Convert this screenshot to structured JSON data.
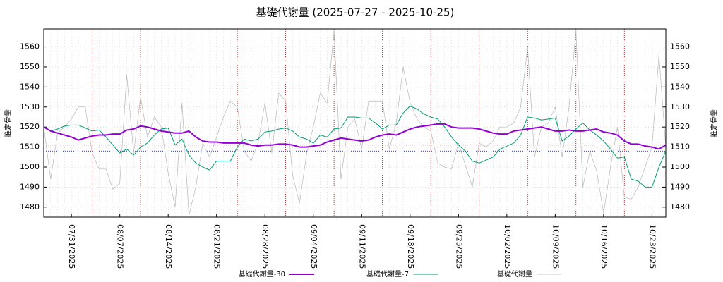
{
  "chart_data": {
    "type": "line",
    "title": "基礎代謝量 (2025-07-27 - 2025-10-25)",
    "ylabel": "推定骨量",
    "y2label": "推定骨量",
    "xlim": [
      "2025-07-27",
      "2025-10-25"
    ],
    "ylim": [
      1475,
      1569
    ],
    "yticks": [
      1480,
      1490,
      1500,
      1510,
      1520,
      1530,
      1540,
      1550,
      1560
    ],
    "xticks": [
      {
        "value": "2025-07-31",
        "label": "07/31/2025"
      },
      {
        "value": "2025-08-07",
        "label": "08/07/2025"
      },
      {
        "value": "2025-08-14",
        "label": "08/14/2025"
      },
      {
        "value": "2025-08-21",
        "label": "08/21/2025"
      },
      {
        "value": "2025-08-28",
        "label": "08/28/2025"
      },
      {
        "value": "2025-09-04",
        "label": "09/04/2025"
      },
      {
        "value": "2025-09-11",
        "label": "09/11/2025"
      },
      {
        "value": "2025-09-18",
        "label": "09/18/2025"
      },
      {
        "value": "2025-09-25",
        "label": "09/25/2025"
      },
      {
        "value": "2025-10-02",
        "label": "10/02/2025"
      },
      {
        "value": "2025-10-09",
        "label": "10/09/2025"
      },
      {
        "value": "2025-10-16",
        "label": "10/16/2025"
      },
      {
        "value": "2025-10-23",
        "label": "10/23/2025"
      }
    ],
    "week_lines": [
      "2025-08-03",
      "2025-08-10",
      "2025-08-17",
      "2025-08-24",
      "2025-08-31",
      "2025-09-07",
      "2025-09-14",
      "2025-09-21",
      "2025-09-28",
      "2025-10-05",
      "2025-10-12",
      "2025-10-19"
    ],
    "week_line_color": "#c00000",
    "reference_lines": [
      {
        "value": 1511,
        "color": "#c00000"
      },
      {
        "value": 1508,
        "color": "#0000a0"
      }
    ],
    "grid": true,
    "legend": "bottom",
    "x": [
      "2025-07-27",
      "2025-07-28",
      "2025-07-29",
      "2025-07-30",
      "2025-07-31",
      "2025-08-01",
      "2025-08-02",
      "2025-08-03",
      "2025-08-04",
      "2025-08-05",
      "2025-08-06",
      "2025-08-07",
      "2025-08-08",
      "2025-08-09",
      "2025-08-10",
      "2025-08-11",
      "2025-08-12",
      "2025-08-13",
      "2025-08-14",
      "2025-08-15",
      "2025-08-16",
      "2025-08-17",
      "2025-08-18",
      "2025-08-19",
      "2025-08-20",
      "2025-08-21",
      "2025-08-22",
      "2025-08-23",
      "2025-08-24",
      "2025-08-25",
      "2025-08-26",
      "2025-08-27",
      "2025-08-28",
      "2025-08-29",
      "2025-08-30",
      "2025-08-31",
      "2025-09-01",
      "2025-09-02",
      "2025-09-03",
      "2025-09-04",
      "2025-09-05",
      "2025-09-06",
      "2025-09-07",
      "2025-09-08",
      "2025-09-09",
      "2025-09-10",
      "2025-09-11",
      "2025-09-12",
      "2025-09-13",
      "2025-09-14",
      "2025-09-15",
      "2025-09-16",
      "2025-09-17",
      "2025-09-18",
      "2025-09-19",
      "2025-09-20",
      "2025-09-21",
      "2025-09-22",
      "2025-09-23",
      "2025-09-24",
      "2025-09-25",
      "2025-09-26",
      "2025-09-27",
      "2025-09-28",
      "2025-09-29",
      "2025-09-30",
      "2025-10-01",
      "2025-10-02",
      "2025-10-03",
      "2025-10-04",
      "2025-10-05",
      "2025-10-06",
      "2025-10-07",
      "2025-10-08",
      "2025-10-09",
      "2025-10-10",
      "2025-10-11",
      "2025-10-12",
      "2025-10-13",
      "2025-10-14",
      "2025-10-15",
      "2025-10-16",
      "2025-10-17",
      "2025-10-18",
      "2025-10-19",
      "2025-10-20",
      "2025-10-21",
      "2025-10-22",
      "2025-10-23",
      "2025-10-24",
      "2025-10-25"
    ],
    "series": [
      {
        "name": "基礎代謝量-30",
        "color": "#9400d3",
        "line_width": 2,
        "values": [
          1520,
          1518,
          1517,
          1516,
          1515,
          1513.5,
          1514.5,
          1515.5,
          1516,
          1516,
          1516.5,
          1516.5,
          1518.5,
          1519,
          1520.5,
          1520,
          1519,
          1518,
          1517.5,
          1517,
          1517,
          1518,
          1515,
          1513,
          1512.5,
          1512.5,
          1512,
          1512,
          1512,
          1512,
          1511,
          1510.5,
          1511,
          1511,
          1511.5,
          1511.5,
          1511,
          1510,
          1510,
          1510.5,
          1511,
          1512.5,
          1513.5,
          1514.5,
          1514,
          1513.5,
          1513,
          1513.5,
          1515,
          1516,
          1516.5,
          1516,
          1517.5,
          1519,
          1520,
          1520.5,
          1521,
          1521.5,
          1521.5,
          1520,
          1519.5,
          1519.5,
          1519.5,
          1519,
          1518,
          1517,
          1516.5,
          1516.5,
          1518,
          1518.5,
          1519,
          1519.5,
          1520,
          1519,
          1518,
          1518,
          1518.5,
          1518,
          1518,
          1518.5,
          1519,
          1517.5,
          1517,
          1516,
          1513,
          1511.5,
          1511.5,
          1510.5,
          1510,
          1509,
          1511
        ]
      },
      {
        "name": "基礎代謝量-7",
        "color": "#009e73",
        "line_width": 1,
        "values": [
          1520,
          1518,
          1519,
          1520.5,
          1521,
          1521,
          1519.5,
          1518,
          1518.5,
          1515,
          1511,
          1507,
          1509,
          1506,
          1510,
          1512,
          1516,
          1519,
          1519.5,
          1511,
          1514,
          1506,
          1502,
          1500,
          1498.5,
          1503,
          1503,
          1503,
          1510,
          1514,
          1513,
          1514,
          1517.5,
          1518,
          1519,
          1519.5,
          1518,
          1515,
          1514,
          1512,
          1516,
          1515,
          1519,
          1519.5,
          1525,
          1525,
          1524.5,
          1524.5,
          1522,
          1519,
          1521,
          1521,
          1527,
          1530.5,
          1529,
          1526.5,
          1525,
          1524,
          1520,
          1515,
          1511,
          1508,
          1503,
          1502,
          1503.5,
          1505,
          1509,
          1510.5,
          1512,
          1516,
          1525,
          1524.5,
          1523.5,
          1524,
          1524.5,
          1513,
          1515.5,
          1519,
          1522,
          1518.5,
          1516,
          1513,
          1509,
          1504.5,
          1505,
          1494,
          1493,
          1490,
          1490,
          1500,
          1508
        ]
      },
      {
        "name": "基礎代謝量",
        "color": "#b8b8b8",
        "line_width": 0.7,
        "values": [
          1520,
          1494,
          1517,
          1520,
          1524,
          1530,
          1530,
          1507,
          1499,
          1499,
          1489,
          1492,
          1546,
          1507,
          1535,
          1515,
          1525,
          1520,
          1497,
          1480,
          1532,
          1476,
          1490,
          1512,
          1505,
          1515,
          1525,
          1533,
          1530,
          1508,
          1503,
          1512,
          1532,
          1507,
          1537,
          1533,
          1496,
          1482,
          1506,
          1520,
          1537,
          1532,
          1568,
          1494,
          1520,
          1524,
          1509,
          1533,
          1533,
          1533,
          1509,
          1522,
          1550,
          1532,
          1524,
          1520,
          1518,
          1502,
          1500,
          1499,
          1512,
          1501,
          1490,
          1512,
          1510,
          1513,
          1520,
          1520,
          1522,
          1530,
          1560,
          1505,
          1520,
          1522,
          1530,
          1505,
          1530,
          1568,
          1490,
          1508,
          1498,
          1477,
          1500,
          1520,
          1485,
          1484,
          1490,
          1500,
          1510,
          1556,
          1510
        ]
      }
    ]
  }
}
